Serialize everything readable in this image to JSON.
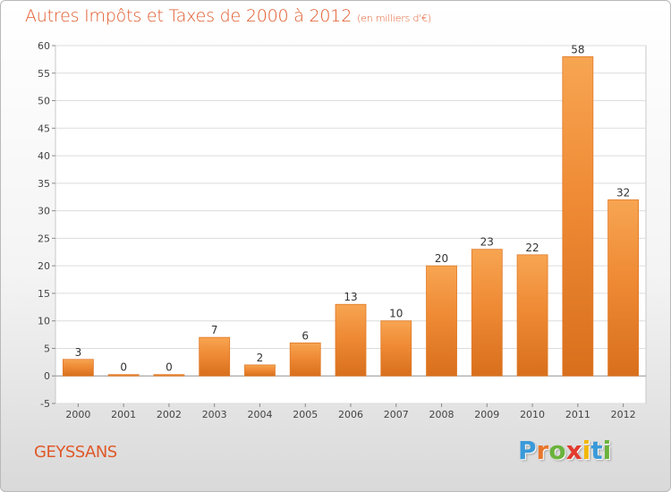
{
  "header": {
    "title": "Autres Impôts et Taxes de 2000 à 2012",
    "unit": "(en milliers d'€)"
  },
  "footer": {
    "commune": "GEYSSANS",
    "brand": "Proxiti",
    "brand_letters": [
      "P",
      "r",
      "o",
      "x",
      "i",
      "t",
      "i"
    ],
    "brand_colors": [
      "#3a9ad9",
      "#e8762b",
      "#6bb33c",
      "#e23b2e",
      "#f2b705",
      "#3a9ad9",
      "#6bb33c"
    ]
  },
  "chart_data": {
    "type": "bar",
    "title": "Autres Impôts et Taxes de 2000 à 2012",
    "subtitle": "(en milliers d'€)",
    "xlabel": "",
    "ylabel": "",
    "categories": [
      "2000",
      "2001",
      "2002",
      "2003",
      "2004",
      "2005",
      "2006",
      "2007",
      "2008",
      "2009",
      "2010",
      "2011",
      "2012"
    ],
    "values": [
      3,
      0,
      0,
      7,
      2,
      6,
      13,
      10,
      20,
      23,
      22,
      58,
      32
    ],
    "ylim": [
      -5,
      60
    ],
    "yticks": [
      -5,
      0,
      5,
      10,
      15,
      20,
      25,
      30,
      35,
      40,
      45,
      50,
      55,
      60
    ],
    "grid": true,
    "legend": "none",
    "bar_color": "#ef8a35",
    "bar_color_light": "#f7a552",
    "bar_color_dark": "#d86f1c"
  }
}
